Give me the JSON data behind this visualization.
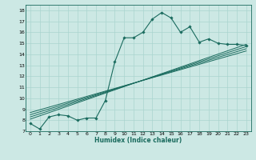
{
  "title": "",
  "xlabel": "Humidex (Indice chaleur)",
  "ylabel": "",
  "bg_color": "#cce8e4",
  "grid_color": "#aad4cf",
  "line_color": "#1a6b5e",
  "xlim": [
    -0.5,
    23.5
  ],
  "ylim": [
    7,
    18.5
  ],
  "xticks": [
    0,
    1,
    2,
    3,
    4,
    5,
    6,
    7,
    8,
    9,
    10,
    11,
    12,
    13,
    14,
    15,
    16,
    17,
    18,
    19,
    20,
    21,
    22,
    23
  ],
  "yticks": [
    7,
    8,
    9,
    10,
    11,
    12,
    13,
    14,
    15,
    16,
    17,
    18
  ],
  "main_x": [
    0,
    1,
    2,
    3,
    4,
    5,
    6,
    7,
    8,
    9,
    10,
    11,
    12,
    13,
    14,
    15,
    16,
    17,
    18,
    19,
    20,
    21,
    22,
    23
  ],
  "main_y": [
    7.7,
    7.2,
    8.3,
    8.5,
    8.4,
    8.0,
    8.2,
    8.2,
    9.8,
    13.3,
    15.5,
    15.5,
    16.0,
    17.2,
    17.8,
    17.3,
    16.0,
    16.5,
    15.1,
    15.4,
    15.0,
    14.9,
    14.9,
    14.8
  ],
  "trend1_x": [
    0,
    23
  ],
  "trend1_y": [
    8.7,
    14.3
  ],
  "trend2_x": [
    0,
    23
  ],
  "trend2_y": [
    8.5,
    14.5
  ],
  "trend3_x": [
    0,
    23
  ],
  "trend3_y": [
    8.3,
    14.7
  ],
  "trend4_x": [
    0,
    23
  ],
  "trend4_y": [
    8.1,
    14.9
  ]
}
